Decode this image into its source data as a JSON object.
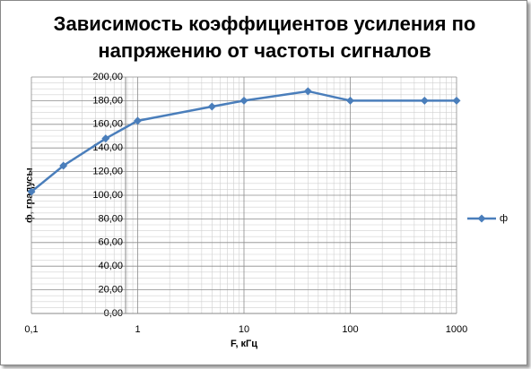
{
  "chart_data": {
    "type": "line",
    "title": "Зависимость коэффициентов усиления по напряжению от частоты сигналов",
    "x_label": "F, кГц",
    "y_label": "ф, градусы",
    "x": [
      0.1,
      0.2,
      0.5,
      1,
      5,
      10,
      40,
      100,
      500,
      1000
    ],
    "series": [
      {
        "name": "ф",
        "color": "#4a7ebb",
        "values": [
          103,
          125,
          148,
          163,
          175,
          180,
          188,
          180,
          180,
          180
        ]
      }
    ],
    "xlim": [
      0.1,
      1000
    ],
    "x_log": true,
    "xticks": [
      {
        "value": 0.1,
        "label": "0,1"
      },
      1,
      10,
      100,
      1000
    ],
    "ylim": [
      0,
      200
    ],
    "yticks": [
      {
        "value": 0,
        "label": "0,00"
      },
      {
        "value": 20,
        "label": "20,00"
      },
      {
        "value": 40,
        "label": "40,00"
      },
      {
        "value": 60,
        "label": "60,00"
      },
      {
        "value": 80,
        "label": "80,00"
      },
      {
        "value": 100,
        "label": "100,00"
      },
      {
        "value": 120,
        "label": "120,00"
      },
      {
        "value": 140,
        "label": "140,00"
      },
      {
        "value": 160,
        "label": "160,00"
      },
      {
        "value": 180,
        "label": "180,00"
      },
      {
        "value": 200,
        "label": "200,00"
      }
    ],
    "grid": true,
    "legend": "right"
  }
}
